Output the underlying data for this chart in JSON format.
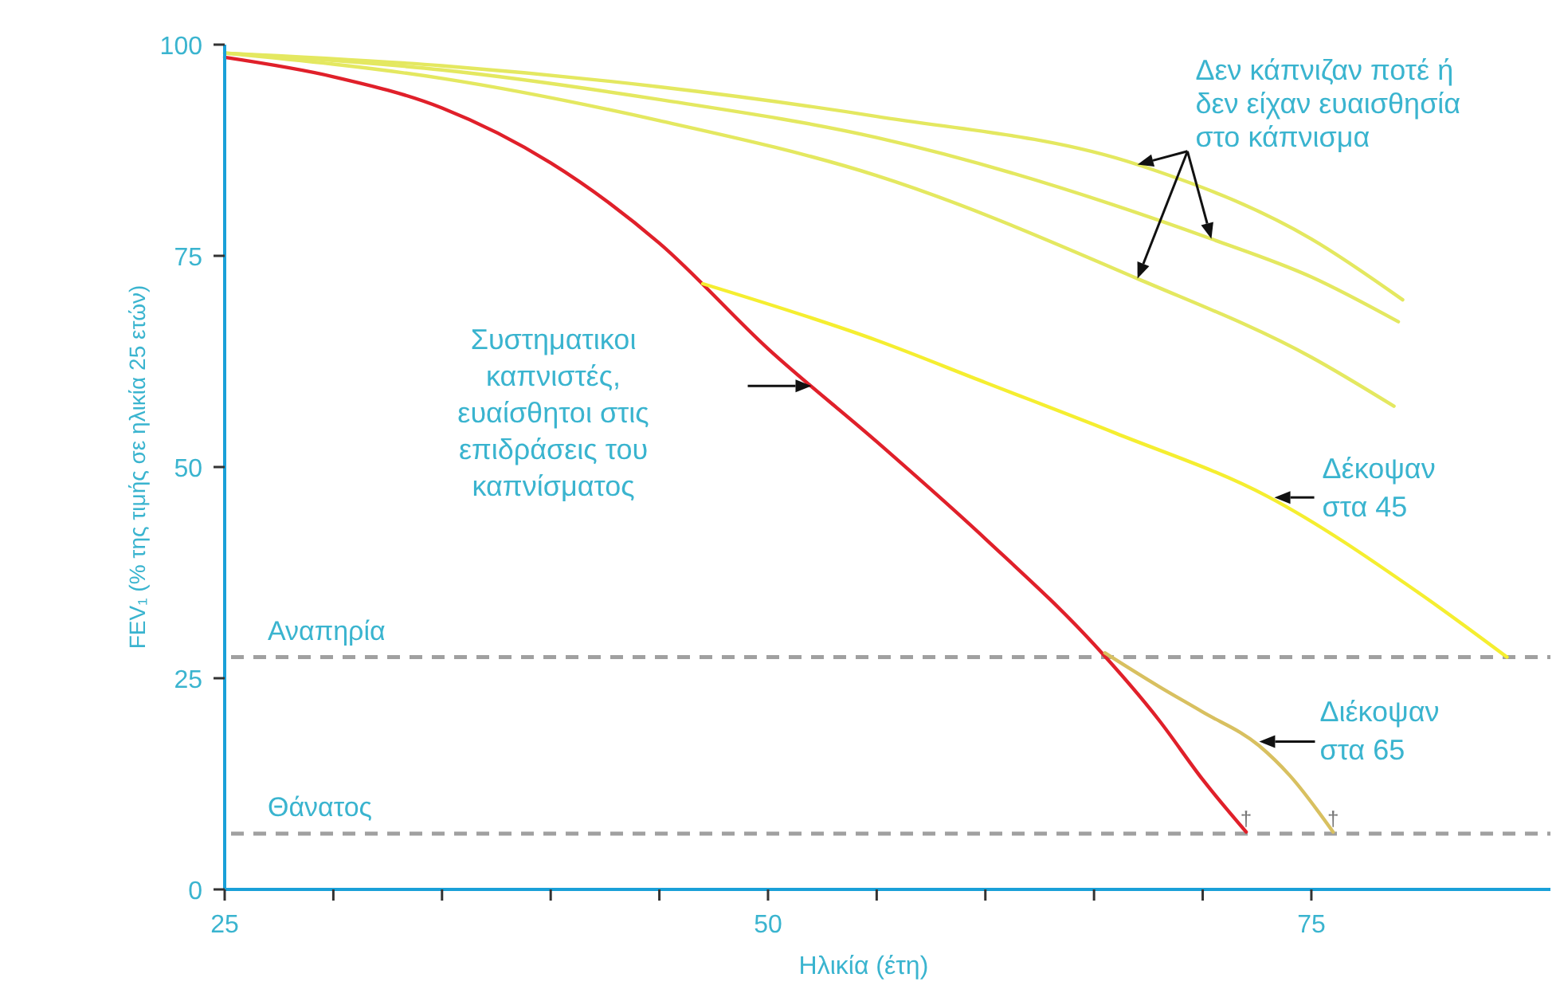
{
  "chart_data": {
    "type": "line",
    "xlabel": "Ηλικία (έτη)",
    "ylabel": "FEV₁ (% της τιμής σε ηλικία 25 ετών)",
    "xlim": [
      25,
      86
    ],
    "ylim": [
      0,
      100
    ],
    "xticks": [
      25,
      {
        "value": 30,
        "label": null
      },
      {
        "value": 35,
        "label": null
      },
      {
        "value": 40,
        "label": null
      },
      {
        "value": 45,
        "label": null
      },
      50,
      {
        "value": 55,
        "label": null
      },
      {
        "value": 60,
        "label": null
      },
      {
        "value": 65,
        "label": null
      },
      {
        "value": 70,
        "label": null
      },
      75
    ],
    "yticks": [
      0,
      25,
      50,
      75,
      100
    ],
    "grid": false,
    "marker": "none",
    "line_style": "solid",
    "series": [
      {
        "color": "#e4e860",
        "x": [
          25,
          35,
          45,
          55,
          67,
          75,
          79.2
        ],
        "values": [
          99,
          97.5,
          95,
          91.5,
          85.8,
          77,
          69.8
        ]
      },
      {
        "color": "#e4e860",
        "x": [
          25,
          35,
          45,
          55,
          70.4,
          75,
          79
        ],
        "values": [
          99,
          97,
          93.5,
          89,
          77,
          72.5,
          67.2
        ]
      },
      {
        "color": "#e4e860",
        "x": [
          25,
          35,
          45,
          55,
          67,
          75,
          78.8
        ],
        "values": [
          99,
          96,
          91,
          84.5,
          72.3,
          63,
          57.2
        ]
      },
      {
        "color": "#e0202a",
        "x": [
          25,
          30,
          35,
          40,
          45,
          50,
          55,
          60,
          65,
          68,
          70,
          72
        ],
        "values": [
          98.5,
          96.2,
          92.5,
          86,
          76.5,
          64,
          53,
          41.5,
          29,
          20,
          13,
          6.8
        ]
      },
      {
        "color": "#f5ee30",
        "x": [
          47,
          55,
          60,
          66,
          73,
          80,
          84
        ],
        "values": [
          71.7,
          65,
          60,
          54,
          46.5,
          35,
          27.5
        ]
      },
      {
        "color": "#d8c060",
        "x": [
          65.5,
          68,
          70,
          72.6,
          74,
          76
        ],
        "values": [
          28,
          24,
          21,
          17,
          13.5,
          6.8
        ]
      }
    ],
    "ref_lines": [
      {
        "axis": "y",
        "value": 27.5,
        "label": "Αναπηρία",
        "color": "#a0a0a0",
        "line_style": "dashed"
      },
      {
        "axis": "y",
        "value": 6.6,
        "label": "Θάνατος",
        "color": "#a0a0a0",
        "line_style": "dashed"
      }
    ],
    "annotations": [
      "Δεν κάπνιζαν ποτέ ή\nδεν είχαν ευαισθησία\nστο κάπνισμα",
      "Συστηματικοι\nκαπνιστές,\nευαίσθητοι στις\nεπιδράσεις του\nκαπνίσματος",
      {
        "text": "Δέκοψαν\nστα 45",
        "x": 73.3,
        "y": 46.4
      },
      {
        "text": "Διέκοψαν\nστα 65",
        "x": 72.6,
        "y": 17.5
      },
      {
        "text": "†",
        "x": 72,
        "y": 6.8
      },
      {
        "text": "†",
        "x": 76,
        "y": 6.8
      }
    ]
  }
}
